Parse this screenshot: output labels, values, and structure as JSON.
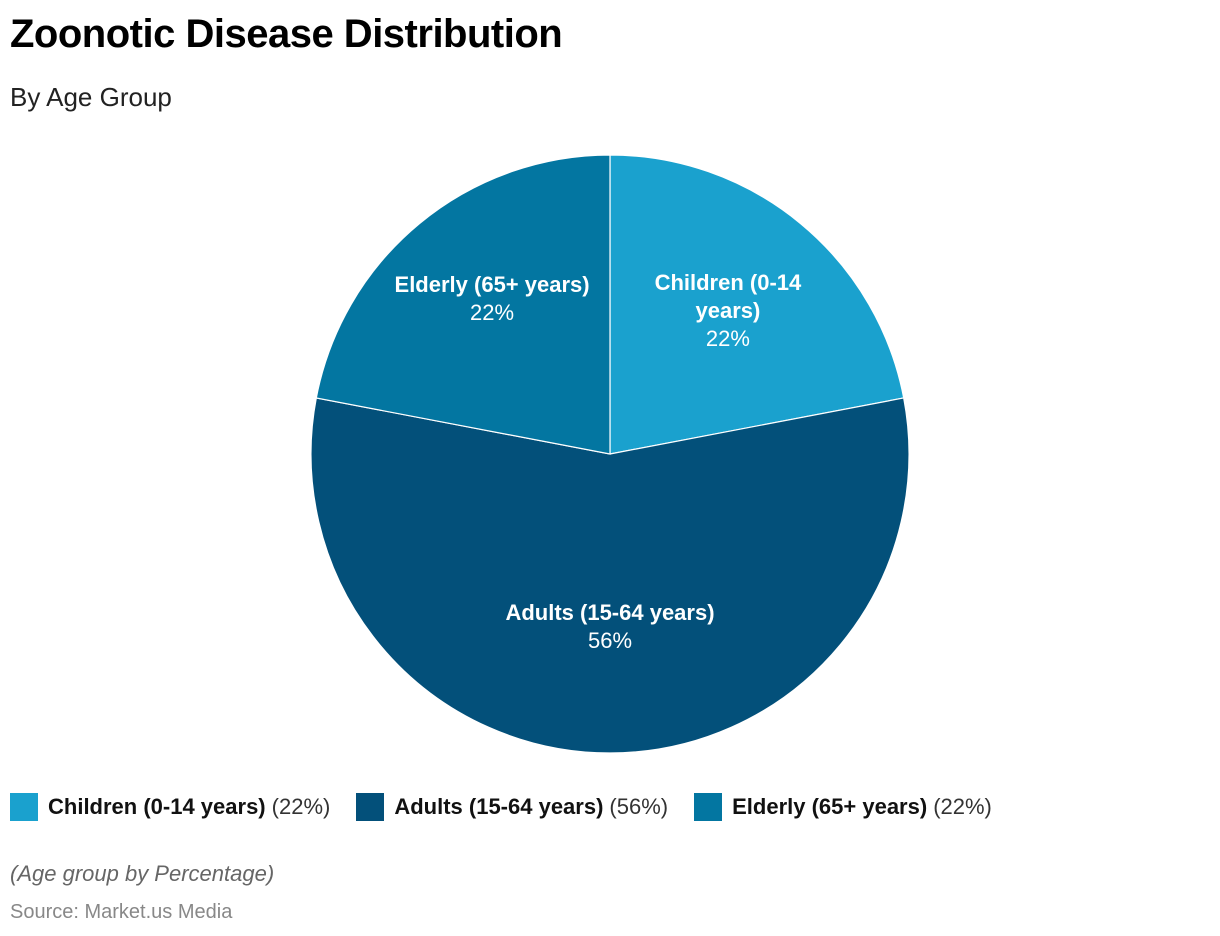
{
  "chart_data": {
    "type": "pie",
    "title": "Zoonotic Disease Distribution",
    "subtitle": "By Age Group",
    "slices": [
      {
        "label": "Children (0-14 years)",
        "value": 22,
        "display": "22%",
        "legend_value": "(22%)",
        "color": "#1aa1ce"
      },
      {
        "label": "Adults (15-64 years)",
        "value": 56,
        "display": "56%",
        "legend_value": "(56%)",
        "color": "#03507a"
      },
      {
        "label": "Elderly (65+ years)",
        "value": 22,
        "display": "22%",
        "legend_value": "(22%)",
        "color": "#0376a1"
      }
    ],
    "start": "top",
    "direction": "clockwise",
    "legend_position": "bottom-left",
    "note": "(Age group by Percentage)",
    "source": "Source: Market.us Media"
  }
}
